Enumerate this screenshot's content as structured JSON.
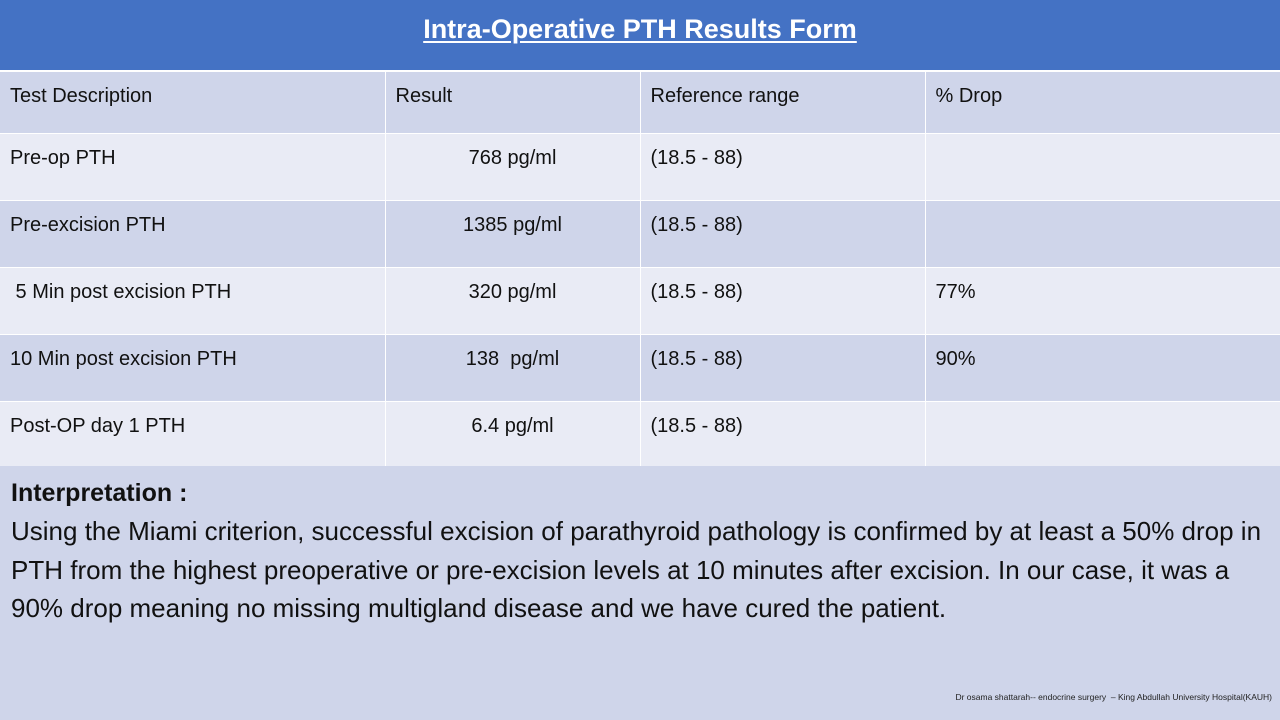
{
  "title": "Intra-Operative PTH Results Form",
  "table": {
    "headers": [
      "Test Description",
      "Result",
      "Reference range",
      "% Drop"
    ],
    "rows": [
      {
        "test": "Pre-op PTH",
        "result": "768 pg/ml",
        "range": "(18.5 - 88)",
        "drop": ""
      },
      {
        "test": "Pre-excision PTH",
        "result": "1385 pg/ml",
        "range": "(18.5 - 88)",
        "drop": ""
      },
      {
        "test": " 5 Min post excision PTH",
        "result": "320 pg/ml",
        "range": "(18.5 - 88)",
        "drop": "77%"
      },
      {
        "test": "10 Min post excision PTH",
        "result": "138  pg/ml",
        "range": "(18.5 - 88)",
        "drop": "90%"
      },
      {
        "test": "Post-OP day 1 PTH",
        "result": "6.4 pg/ml",
        "range": "(18.5 - 88)",
        "drop": ""
      }
    ]
  },
  "interpretation": {
    "heading": "Interpretation :",
    "body": "Using the Miami criterion, successful excision of parathyroid pathology is confirmed by at least a 50% drop in PTH from the highest preoperative or pre-excision levels at 10 minutes after excision. In our case, it was a 90% drop meaning no missing multigland disease and we have cured the patient."
  },
  "credit": "Dr osama shattarah-- endocrine surgery  – King Abdullah University Hospital(KAUH)",
  "colors": {
    "title_bar": "#4472c4",
    "header_and_dark_rows": "#cfd5ea",
    "light_rows": "#e9ebf5"
  }
}
